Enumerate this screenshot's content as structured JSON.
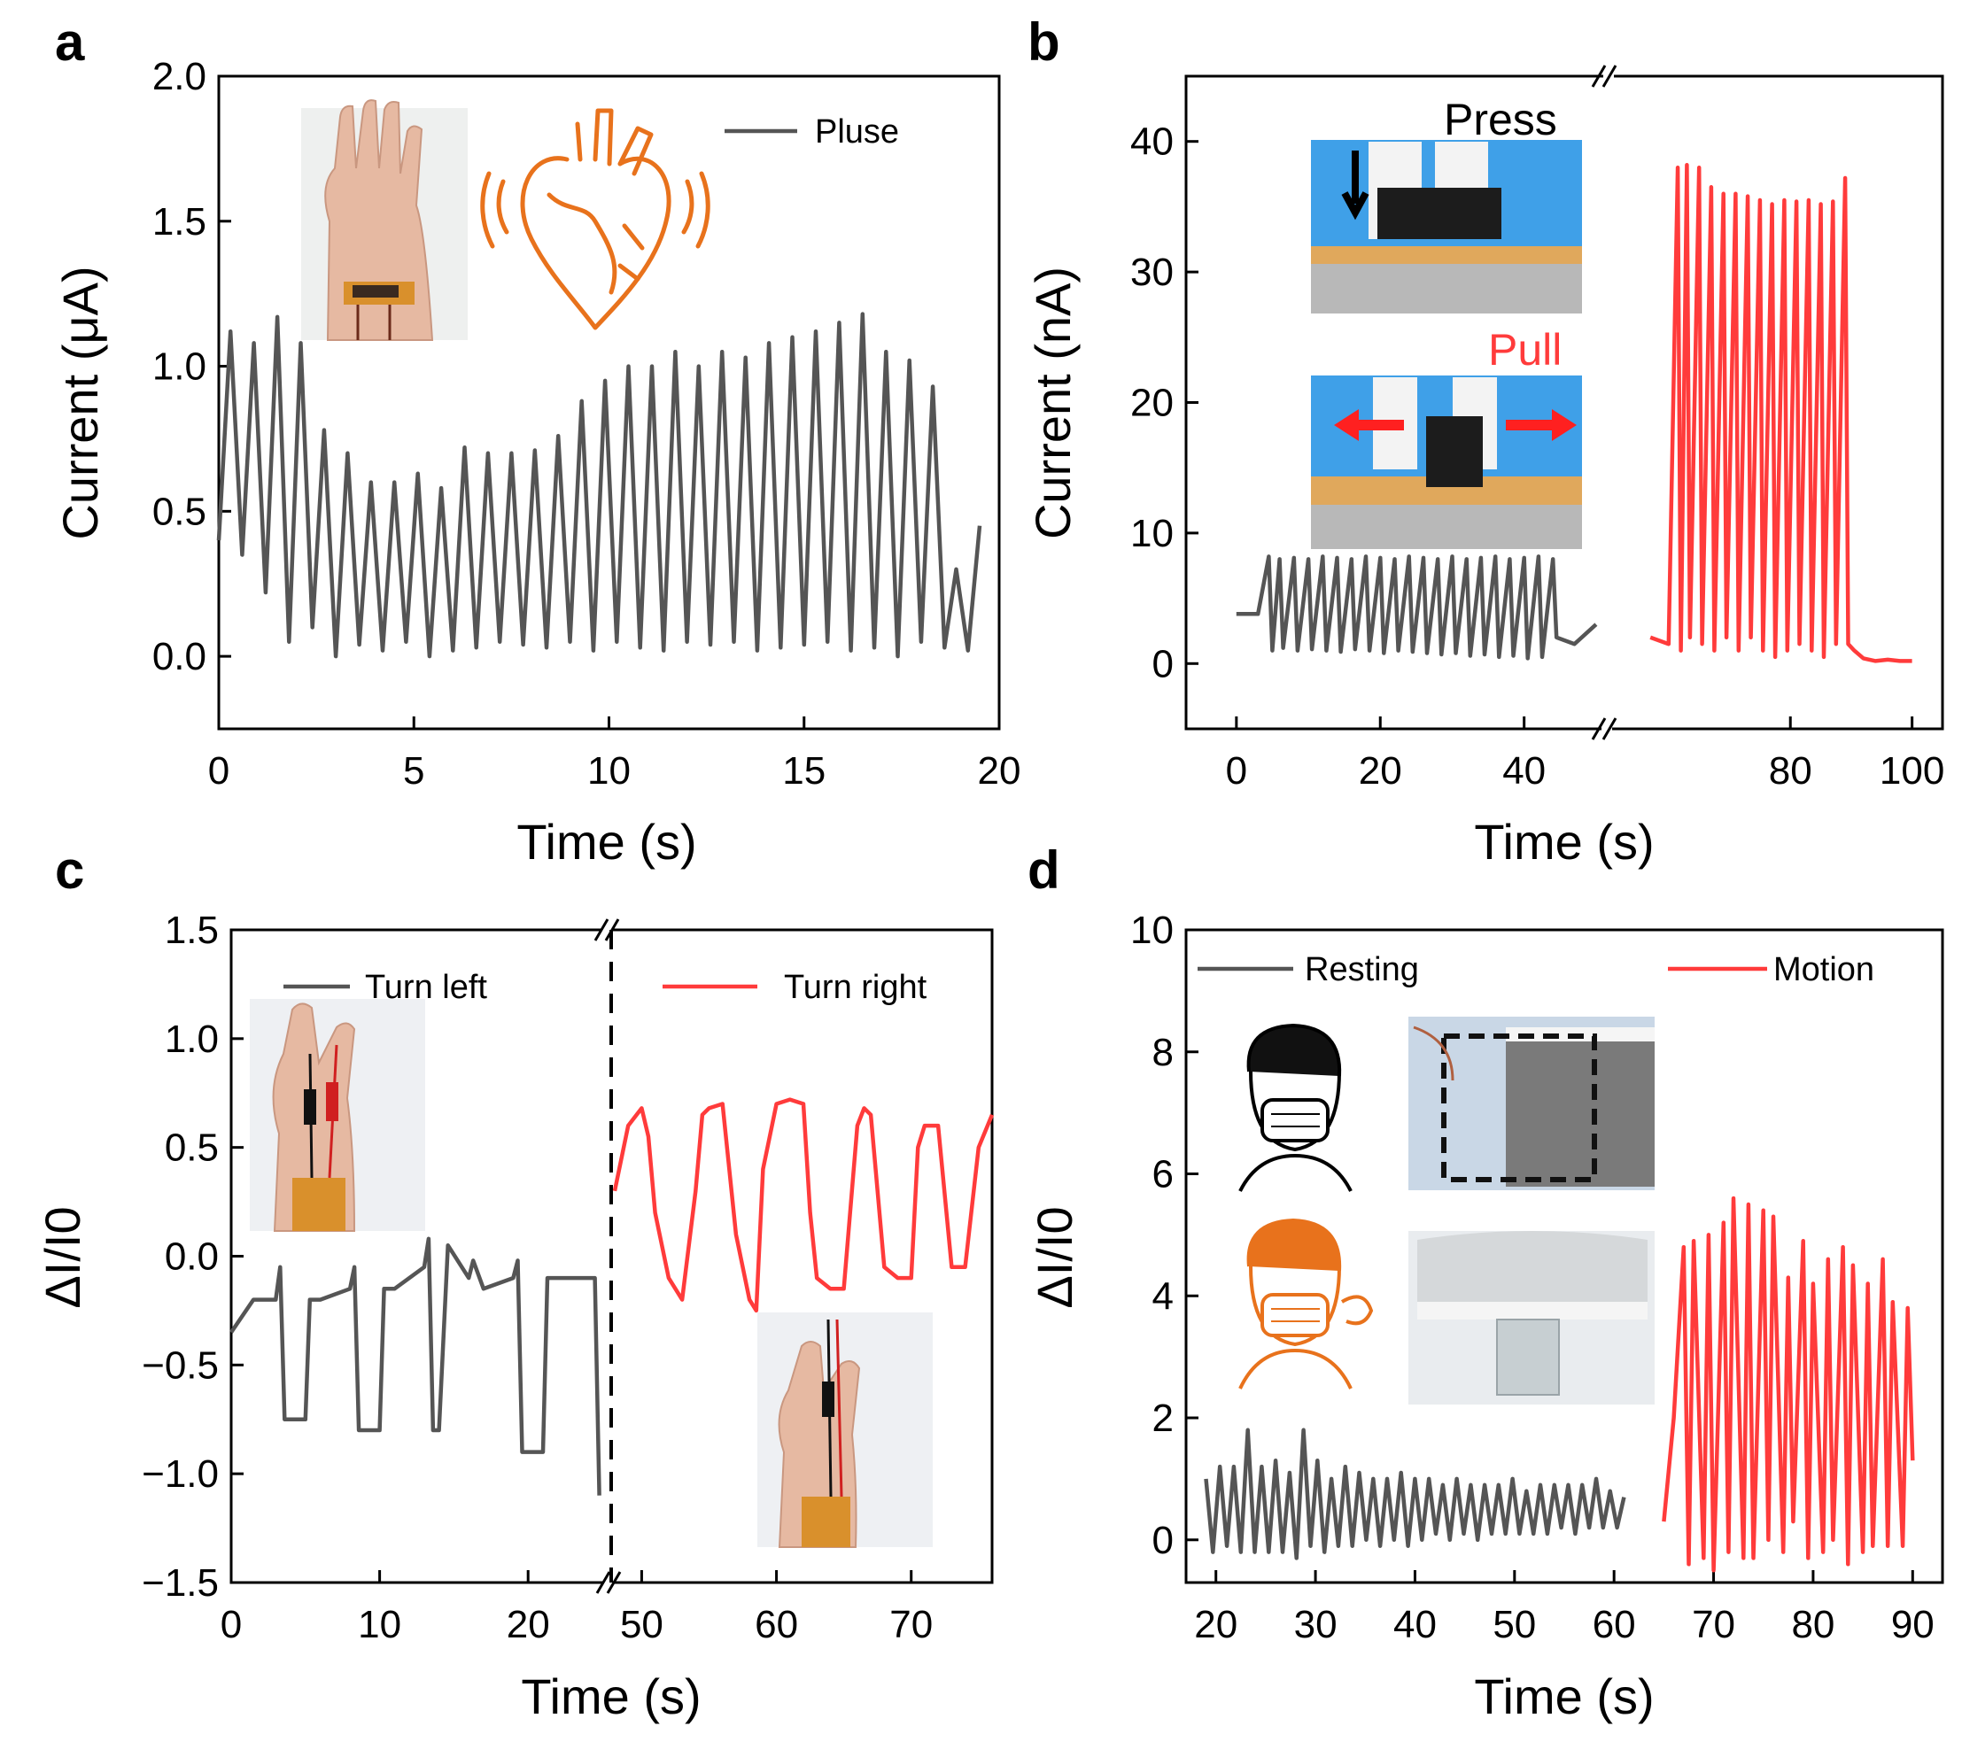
{
  "colors": {
    "dark": "#555555",
    "red": "#ff3b3b",
    "orange": "#e8721c",
    "skin": "#e8b89e",
    "glove": "#2f8fe0",
    "tape": "#d9902c"
  },
  "chart_data": [
    {
      "panel": "a",
      "type": "line",
      "xlabel": "Time (s)",
      "ylabel": "Current (μA)",
      "xlim": [
        0,
        20
      ],
      "ylim": [
        -0.25,
        2.0
      ],
      "xticks": [
        0,
        5,
        10,
        15,
        20
      ],
      "xtick_labels": [
        "0",
        "5",
        "10",
        "15",
        "20"
      ],
      "yticks": [
        0.0,
        0.5,
        1.0,
        1.5,
        2.0
      ],
      "ytick_labels": [
        "0.0",
        "0.5",
        "1.0",
        "1.5",
        "2.0"
      ],
      "legend": [
        {
          "label": "Pluse",
          "color": "#555555"
        }
      ],
      "series": [
        {
          "name": "Pluse",
          "color": "#555555",
          "x": [
            0.0,
            0.3,
            0.6,
            0.9,
            1.2,
            1.5,
            1.8,
            2.1,
            2.4,
            2.7,
            3.0,
            3.3,
            3.6,
            3.9,
            4.2,
            4.5,
            4.8,
            5.1,
            5.4,
            5.7,
            6.0,
            6.3,
            6.6,
            6.9,
            7.2,
            7.5,
            7.8,
            8.1,
            8.4,
            8.7,
            9.0,
            9.3,
            9.6,
            9.9,
            10.2,
            10.5,
            10.8,
            11.1,
            11.4,
            11.7,
            12.0,
            12.3,
            12.6,
            12.9,
            13.2,
            13.5,
            13.8,
            14.1,
            14.4,
            14.7,
            15.0,
            15.3,
            15.6,
            15.9,
            16.2,
            16.5,
            16.8,
            17.1,
            17.4,
            17.7,
            18.0,
            18.3,
            18.6,
            18.9,
            19.2,
            19.5
          ],
          "y": [
            0.4,
            1.12,
            0.35,
            1.08,
            0.22,
            1.17,
            0.05,
            1.08,
            0.1,
            0.78,
            0.0,
            0.7,
            0.04,
            0.6,
            0.02,
            0.6,
            0.05,
            0.63,
            0.0,
            0.58,
            0.02,
            0.72,
            0.03,
            0.7,
            0.05,
            0.7,
            0.04,
            0.71,
            0.03,
            0.76,
            0.05,
            0.88,
            0.02,
            0.95,
            0.05,
            1.0,
            0.03,
            1.0,
            0.02,
            1.05,
            0.05,
            1.0,
            0.04,
            1.05,
            0.05,
            1.03,
            0.02,
            1.08,
            0.03,
            1.1,
            0.04,
            1.12,
            0.05,
            1.15,
            0.02,
            1.18,
            0.03,
            1.05,
            0.0,
            1.02,
            0.05,
            0.93,
            0.03,
            0.3,
            0.02,
            0.45
          ]
        }
      ]
    },
    {
      "panel": "b",
      "type": "line",
      "broken_x_axis": true,
      "xlabel": "Time (s)",
      "ylabel": "Current (nA)",
      "segments": [
        {
          "xlim": [
            -7,
            51
          ]
        },
        {
          "xlim": [
            51,
            105
          ]
        }
      ],
      "ylim": [
        -5,
        45
      ],
      "xticks": [
        0,
        20,
        40,
        80,
        100
      ],
      "xtick_labels": [
        "0",
        "20",
        "40",
        "80",
        "100"
      ],
      "yticks": [
        0,
        10,
        20,
        30,
        40
      ],
      "ytick_labels": [
        "0",
        "10",
        "20",
        "30",
        "40"
      ],
      "annotations": [
        {
          "text": "Press",
          "color": "#000000"
        },
        {
          "text": "Pull",
          "color": "#ff3b3b"
        }
      ],
      "series": [
        {
          "name": "Press",
          "color": "#555555",
          "x": [
            0,
            3,
            4.5,
            5,
            6,
            6.5,
            8,
            8.5,
            10,
            10.5,
            12,
            12.5,
            14,
            14.5,
            16,
            16.5,
            18,
            18.5,
            20,
            20.5,
            22,
            22.5,
            24,
            24.5,
            26,
            26.5,
            28,
            28.5,
            30,
            30.5,
            32,
            32.5,
            34,
            34.5,
            36,
            36.5,
            38,
            38.5,
            40,
            40.5,
            42,
            42.5,
            44,
            44.5,
            47,
            50
          ],
          "y": [
            3.8,
            3.8,
            8.2,
            1.0,
            8.0,
            1.2,
            8.1,
            1.0,
            8.0,
            1.1,
            8.2,
            1.0,
            8.1,
            0.9,
            8.0,
            1.1,
            8.2,
            1.0,
            8.1,
            0.8,
            8.0,
            1.0,
            8.2,
            0.9,
            8.1,
            0.8,
            8.0,
            0.7,
            8.2,
            0.8,
            8.0,
            0.6,
            8.1,
            0.7,
            8.2,
            0.5,
            8.0,
            0.6,
            8.1,
            0.4,
            8.2,
            0.5,
            8.0,
            2.0,
            1.5,
            3.0
          ]
        },
        {
          "name": "Pull",
          "color": "#ff3b3b",
          "x": [
            57,
            60,
            61.5,
            62,
            63,
            63.5,
            65,
            65.5,
            67,
            67.5,
            69,
            69.5,
            71,
            71.5,
            73,
            73.5,
            75,
            75.5,
            77,
            77.5,
            79,
            79.5,
            81,
            81.5,
            83,
            83.5,
            85,
            85.5,
            87,
            87.5,
            89,
            89.5,
            90.5,
            92,
            94,
            96,
            98,
            100
          ],
          "y": [
            2.0,
            1.5,
            38.0,
            1.0,
            38.2,
            2.0,
            38.0,
            1.5,
            36.5,
            1.0,
            36.0,
            2.0,
            36.0,
            1.0,
            35.8,
            2.0,
            35.5,
            1.0,
            35.2,
            0.5,
            35.5,
            1.0,
            35.4,
            1.5,
            35.5,
            1.0,
            35.2,
            0.5,
            35.4,
            1.5,
            37.2,
            1.5,
            1.0,
            0.4,
            0.2,
            0.3,
            0.2,
            0.2
          ]
        }
      ]
    },
    {
      "panel": "c",
      "type": "line",
      "broken_x_axis": true,
      "xlabel": "Time (s)",
      "ylabel": "ΔI/I0",
      "segments": [
        {
          "xlim": [
            0,
            25
          ]
        },
        {
          "xlim": [
            48,
            76
          ]
        }
      ],
      "ylim": [
        -1.5,
        1.5
      ],
      "xticks": [
        0,
        10,
        20,
        50,
        60,
        70
      ],
      "xtick_labels": [
        "0",
        "10",
        "20",
        "50",
        "60",
        "70"
      ],
      "yticks": [
        -1.5,
        -1.0,
        -0.5,
        0.0,
        0.5,
        1.0,
        1.5
      ],
      "ytick_labels": [
        "−1.5",
        "−1.0",
        "−0.5",
        "0.0",
        "0.5",
        "1.0",
        "1.5"
      ],
      "legend": [
        {
          "label": "Turn left",
          "color": "#555555"
        },
        {
          "label": "Turn right",
          "color": "#ff3b3b"
        }
      ],
      "series": [
        {
          "name": "Turn left",
          "color": "#555555",
          "x": [
            0,
            1.5,
            3,
            3.3,
            3.6,
            5,
            5.3,
            6,
            8,
            8.3,
            8.6,
            10,
            10.3,
            11,
            13,
            13.3,
            13.6,
            14,
            14.6,
            16,
            16.3,
            17,
            19,
            19.3,
            19.6,
            21,
            21.3,
            22,
            24,
            24.5,
            24.8
          ],
          "y": [
            -0.35,
            -0.2,
            -0.2,
            -0.05,
            -0.75,
            -0.75,
            -0.2,
            -0.2,
            -0.15,
            -0.05,
            -0.8,
            -0.8,
            -0.15,
            -0.15,
            -0.05,
            0.08,
            -0.8,
            -0.8,
            0.05,
            -0.1,
            -0.02,
            -0.15,
            -0.1,
            -0.02,
            -0.9,
            -0.9,
            -0.1,
            -0.1,
            -0.1,
            -0.1,
            -1.1
          ]
        },
        {
          "name": "Turn right",
          "color": "#ff3b3b",
          "x": [
            48,
            49,
            50,
            50.5,
            51,
            52,
            53,
            54,
            54.5,
            55,
            56,
            57,
            58,
            58.5,
            59,
            60,
            61,
            62,
            62.5,
            63,
            64,
            65,
            66,
            66.5,
            67,
            68,
            69,
            70,
            70.5,
            71,
            72,
            73,
            74,
            75,
            76
          ],
          "y": [
            0.3,
            0.6,
            0.68,
            0.55,
            0.2,
            -0.1,
            -0.2,
            0.3,
            0.65,
            0.68,
            0.7,
            0.1,
            -0.2,
            -0.25,
            0.4,
            0.7,
            0.72,
            0.7,
            0.2,
            -0.1,
            -0.15,
            -0.15,
            0.6,
            0.68,
            0.65,
            -0.05,
            -0.1,
            -0.1,
            0.5,
            0.6,
            0.6,
            -0.05,
            -0.05,
            0.5,
            0.65
          ]
        }
      ]
    },
    {
      "panel": "d",
      "type": "line",
      "xlabel": "Time (s)",
      "ylabel": "ΔI/I0",
      "xlim": [
        17,
        93
      ],
      "ylim": [
        -0.7,
        10
      ],
      "xticks": [
        20,
        30,
        40,
        50,
        60,
        70,
        80,
        90
      ],
      "xtick_labels": [
        "20",
        "30",
        "40",
        "50",
        "60",
        "70",
        "80",
        "90"
      ],
      "yticks": [
        0,
        2,
        4,
        6,
        8,
        10
      ],
      "ytick_labels": [
        "0",
        "2",
        "4",
        "6",
        "8",
        "10"
      ],
      "legend": [
        {
          "label": "Resting",
          "color": "#555555"
        },
        {
          "label": "Motion",
          "color": "#ff3b3b"
        }
      ],
      "series": [
        {
          "name": "Resting",
          "color": "#555555",
          "x": [
            19,
            19.7,
            20.4,
            21.1,
            21.8,
            22.5,
            23.2,
            23.9,
            24.6,
            25.3,
            26,
            26.7,
            27.4,
            28.1,
            28.8,
            29.5,
            30.2,
            30.9,
            31.6,
            32.3,
            33,
            33.7,
            34.4,
            35.1,
            35.8,
            36.5,
            37.2,
            37.9,
            38.6,
            39.3,
            40,
            40.7,
            41.4,
            42.1,
            42.8,
            43.5,
            44.2,
            44.9,
            45.6,
            46.3,
            47,
            47.7,
            48.4,
            49.1,
            49.8,
            50.5,
            51.2,
            51.9,
            52.6,
            53.3,
            54,
            54.7,
            55.4,
            56.1,
            56.8,
            57.5,
            58.2,
            58.9,
            59.6,
            60.3,
            61
          ],
          "y": [
            1.0,
            -0.2,
            1.2,
            -0.1,
            1.2,
            -0.2,
            1.8,
            -0.2,
            1.2,
            -0.2,
            1.3,
            -0.2,
            1.1,
            -0.3,
            1.8,
            -0.1,
            1.3,
            -0.2,
            1.0,
            -0.1,
            1.2,
            -0.1,
            1.1,
            0.0,
            1.0,
            -0.1,
            1.0,
            0.0,
            1.1,
            -0.1,
            1.0,
            0.0,
            1.0,
            0.1,
            0.9,
            0.0,
            1.0,
            0.1,
            0.9,
            0.0,
            0.9,
            0.1,
            0.9,
            0.1,
            1.0,
            0.1,
            0.8,
            0.1,
            0.9,
            0.1,
            0.9,
            0.2,
            0.9,
            0.1,
            0.9,
            0.2,
            1.0,
            0.2,
            0.8,
            0.2,
            0.7
          ]
        },
        {
          "name": "Motion",
          "color": "#ff3b3b",
          "x": [
            65,
            66,
            67,
            67.5,
            68,
            69,
            69.5,
            70,
            71,
            71.5,
            72,
            73,
            73.5,
            74,
            75,
            75.5,
            76,
            77,
            77.5,
            78,
            79,
            79.5,
            80,
            81,
            81.5,
            82,
            83,
            83.5,
            84,
            85,
            85.5,
            86,
            87,
            87.5,
            88,
            89,
            89.5,
            90
          ],
          "y": [
            0.3,
            2.0,
            4.8,
            -0.4,
            4.9,
            -0.3,
            5.0,
            -0.5,
            5.2,
            -0.2,
            5.6,
            -0.3,
            5.5,
            -0.3,
            5.4,
            0.0,
            5.3,
            -0.2,
            4.3,
            0.3,
            4.9,
            -0.3,
            4.2,
            -0.2,
            4.6,
            0.0,
            4.8,
            -0.4,
            4.5,
            -0.2,
            4.2,
            -0.1,
            4.6,
            -0.1,
            3.9,
            -0.1,
            3.8,
            1.3
          ]
        }
      ]
    }
  ]
}
